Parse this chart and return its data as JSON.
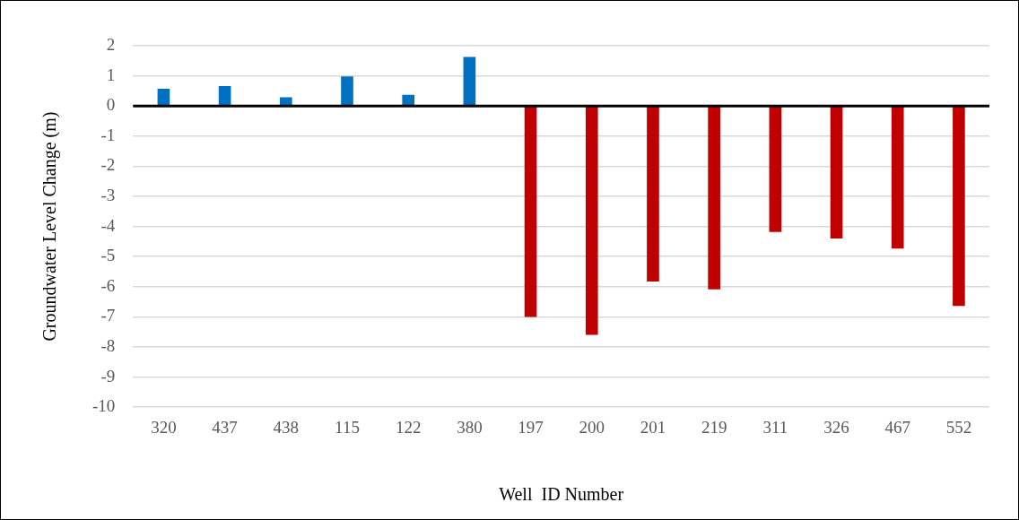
{
  "chart_data": {
    "type": "bar",
    "xlabel": "Well  ID Number",
    "ylabel": "Groundwater Level Change (m)",
    "categories": [
      "320",
      "437",
      "438",
      "115",
      "122",
      "380",
      "197",
      "200",
      "201",
      "219",
      "311",
      "326",
      "467",
      "552"
    ],
    "values": [
      0.57,
      0.66,
      0.29,
      0.98,
      0.37,
      1.63,
      -7.0,
      -7.6,
      -5.83,
      -6.09,
      -4.18,
      -4.4,
      -4.73,
      -6.64
    ],
    "colors": [
      "#0070c0",
      "#0070c0",
      "#0070c0",
      "#0070c0",
      "#0070c0",
      "#0070c0",
      "#c00000",
      "#c00000",
      "#c00000",
      "#c00000",
      "#c00000",
      "#c00000",
      "#c00000",
      "#c00000"
    ],
    "ylim": [
      -10,
      2
    ],
    "yticks": [
      -10,
      -9,
      -8,
      -7,
      -6,
      -5,
      -4,
      -3,
      -2,
      -1,
      0,
      1,
      2
    ],
    "grid": "y",
    "legend": false
  }
}
